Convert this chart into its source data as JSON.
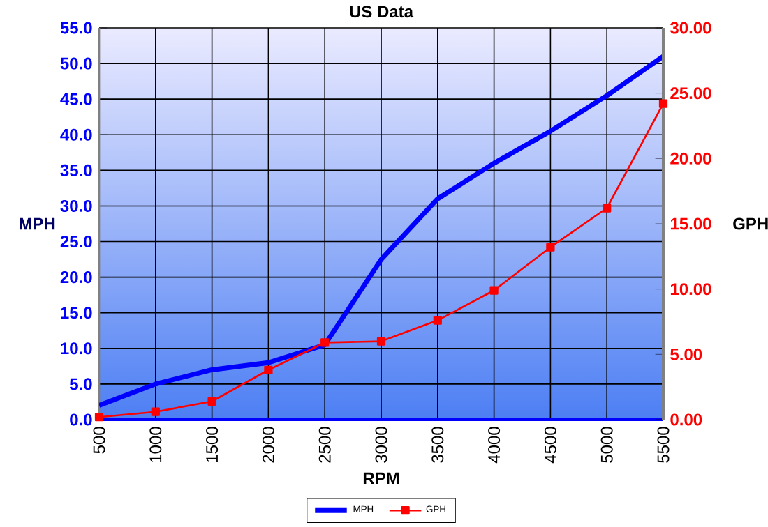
{
  "chart_data": {
    "type": "line",
    "title": "US Data",
    "xlabel": "RPM",
    "ylabel": "MPH",
    "y2label": "GPH",
    "categories": [
      "500",
      "1000",
      "1500",
      "2000",
      "2500",
      "3000",
      "3500",
      "4000",
      "4500",
      "5000",
      "5500"
    ],
    "series": [
      {
        "name": "MPH",
        "color": "#0000ff",
        "marker": "none",
        "values": [
          2.0,
          5.0,
          7.0,
          8.0,
          10.5,
          22.5,
          31.0,
          36.0,
          40.5,
          45.5,
          51.0
        ]
      },
      {
        "name": "GPH",
        "color": "#ff0000",
        "marker": "square",
        "axis": "y2",
        "values": [
          0.2,
          0.6,
          1.4,
          3.8,
          5.9,
          6.0,
          7.6,
          9.9,
          13.2,
          16.2,
          24.2
        ]
      }
    ],
    "ylim": [
      0,
      55
    ],
    "yticks": [
      {
        "value": 0,
        "label": "0.0"
      },
      {
        "value": 5,
        "label": "5.0"
      },
      {
        "value": 10,
        "label": "10.0"
      },
      {
        "value": 15,
        "label": "15.0"
      },
      {
        "value": 20,
        "label": "20.0"
      },
      {
        "value": 25,
        "label": "25.0"
      },
      {
        "value": 30,
        "label": "30.0"
      },
      {
        "value": 35,
        "label": "35.0"
      },
      {
        "value": 40,
        "label": "40.0"
      },
      {
        "value": 45,
        "label": "45.0"
      },
      {
        "value": 50,
        "label": "50.0"
      },
      {
        "value": 55,
        "label": "55.0"
      }
    ],
    "y2lim": [
      0,
      30
    ],
    "y2ticks": [
      {
        "value": 0,
        "label": "0.00"
      },
      {
        "value": 5,
        "label": "5.00"
      },
      {
        "value": 10,
        "label": "10.00"
      },
      {
        "value": 15,
        "label": "15.00"
      },
      {
        "value": 20,
        "label": "20.00"
      },
      {
        "value": 25,
        "label": "25.00"
      },
      {
        "value": 30,
        "label": "30.00"
      }
    ],
    "grid": true,
    "legend": "bottom"
  }
}
